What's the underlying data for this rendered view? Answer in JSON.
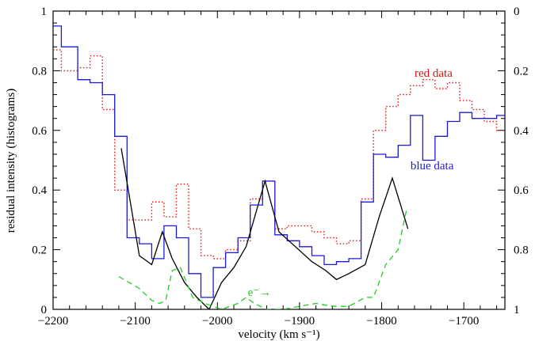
{
  "chart_data": {
    "type": "line",
    "xlabel": "velocity (km s⁻¹)",
    "ylabel": "residual intensity (histograms)",
    "xlim": [
      -2200,
      -1650
    ],
    "ylim": [
      0,
      1
    ],
    "y2lim": [
      1,
      0
    ],
    "x_ticks": [
      -2200,
      -2100,
      -2000,
      -1900,
      -1800,
      -1700
    ],
    "x_tick_labels": [
      "−2200",
      "−2100",
      "−2000",
      "−1900",
      "−1800",
      "−1700"
    ],
    "y_ticks": [
      0,
      0.2,
      0.4,
      0.6,
      0.8,
      1
    ],
    "y_tick_labels": [
      "0",
      "0.2",
      "0.4",
      "0.6",
      "0.8",
      "1"
    ],
    "y2_ticks": [
      0,
      0.2,
      0.4,
      0.6,
      0.8,
      1
    ],
    "y2_tick_labels": [
      "0",
      "0.2",
      "0.4",
      "0.6",
      "0.8",
      "1"
    ],
    "grid": false,
    "series": [
      {
        "name": "red data",
        "style": "step-dotted",
        "color": "#e01010",
        "edges": [
          -2200,
          -2190,
          -2170,
          -2155,
          -2140,
          -2125,
          -2110,
          -2095,
          -2080,
          -2065,
          -2050,
          -2035,
          -2020,
          -2005,
          -1990,
          -1975,
          -1960,
          -1945,
          -1930,
          -1915,
          -1900,
          -1885,
          -1870,
          -1855,
          -1840,
          -1825,
          -1810,
          -1795,
          -1780,
          -1765,
          -1750,
          -1735,
          -1720,
          -1705,
          -1690,
          -1675,
          -1660,
          -1650
        ],
        "values": [
          0.87,
          0.8,
          0.81,
          0.85,
          0.67,
          0.4,
          0.3,
          0.3,
          0.36,
          0.31,
          0.42,
          0.27,
          0.18,
          0.17,
          0.2,
          0.23,
          0.37,
          0.43,
          0.27,
          0.28,
          0.28,
          0.26,
          0.24,
          0.22,
          0.23,
          0.37,
          0.6,
          0.68,
          0.72,
          0.75,
          0.77,
          0.74,
          0.76,
          0.7,
          0.67,
          0.63,
          0.6
        ]
      },
      {
        "name": "blue data",
        "style": "step-solid",
        "color": "#1a1adc",
        "edges": [
          -2200,
          -2190,
          -2170,
          -2155,
          -2140,
          -2125,
          -2110,
          -2095,
          -2080,
          -2065,
          -2050,
          -2035,
          -2020,
          -2005,
          -1990,
          -1975,
          -1960,
          -1945,
          -1930,
          -1915,
          -1900,
          -1885,
          -1870,
          -1855,
          -1840,
          -1825,
          -1810,
          -1795,
          -1780,
          -1765,
          -1750,
          -1735,
          -1720,
          -1705,
          -1690,
          -1675,
          -1660,
          -1650
        ],
        "values": [
          0.95,
          0.88,
          0.77,
          0.76,
          0.72,
          0.58,
          0.24,
          0.22,
          0.17,
          0.28,
          0.24,
          0.12,
          0.04,
          0.14,
          0.19,
          0.24,
          0.35,
          0.43,
          0.25,
          0.23,
          0.21,
          0.18,
          0.15,
          0.16,
          0.17,
          0.36,
          0.52,
          0.51,
          0.55,
          0.65,
          0.5,
          0.58,
          0.63,
          0.66,
          0.64,
          0.64,
          0.65
        ]
      },
      {
        "name": "black model",
        "style": "solid",
        "color": "#000000",
        "x": [
          -2117,
          -2095,
          -2080,
          -2067,
          -2055,
          -2040,
          -2025,
          -2010,
          -1995,
          -1980,
          -1965,
          -1942,
          -1925,
          -1905,
          -1885,
          -1868,
          -1855,
          -1840,
          -1820,
          -1803,
          -1787,
          -1768
        ],
        "y": [
          0.54,
          0.18,
          0.15,
          0.26,
          0.17,
          0.09,
          0.04,
          0.0,
          0.09,
          0.14,
          0.21,
          0.43,
          0.26,
          0.21,
          0.16,
          0.13,
          0.1,
          0.12,
          0.15,
          0.31,
          0.44,
          0.27
        ]
      },
      {
        "name": "e-",
        "style": "dashed",
        "color": "#22cc22",
        "x": [
          -2120,
          -2095,
          -2080,
          -2070,
          -2063,
          -2055,
          -2045,
          -2030,
          -2015,
          -1995,
          -1975,
          -1965,
          -1955,
          -1940,
          -1920,
          -1900,
          -1880,
          -1860,
          -1840,
          -1820,
          -1810,
          -1795,
          -1780,
          -1770
        ],
        "y": [
          0.11,
          0.07,
          0.03,
          0.02,
          0.03,
          0.13,
          0.14,
          0.04,
          0.02,
          0.0,
          0.02,
          0.04,
          0.02,
          0.0,
          0.0,
          0.01,
          0.02,
          0.01,
          0.01,
          0.04,
          0.04,
          0.15,
          0.2,
          0.33
        ]
      }
    ],
    "annotations": [
      {
        "text": "red data",
        "x": -1760,
        "y": 0.78,
        "color": "#e01010"
      },
      {
        "text": "blue data",
        "x": -1765,
        "y": 0.47,
        "color": "#1a1adc"
      },
      {
        "text": "e⁻→",
        "x": -1963,
        "y": 0.045,
        "color": "#22cc22"
      }
    ]
  }
}
